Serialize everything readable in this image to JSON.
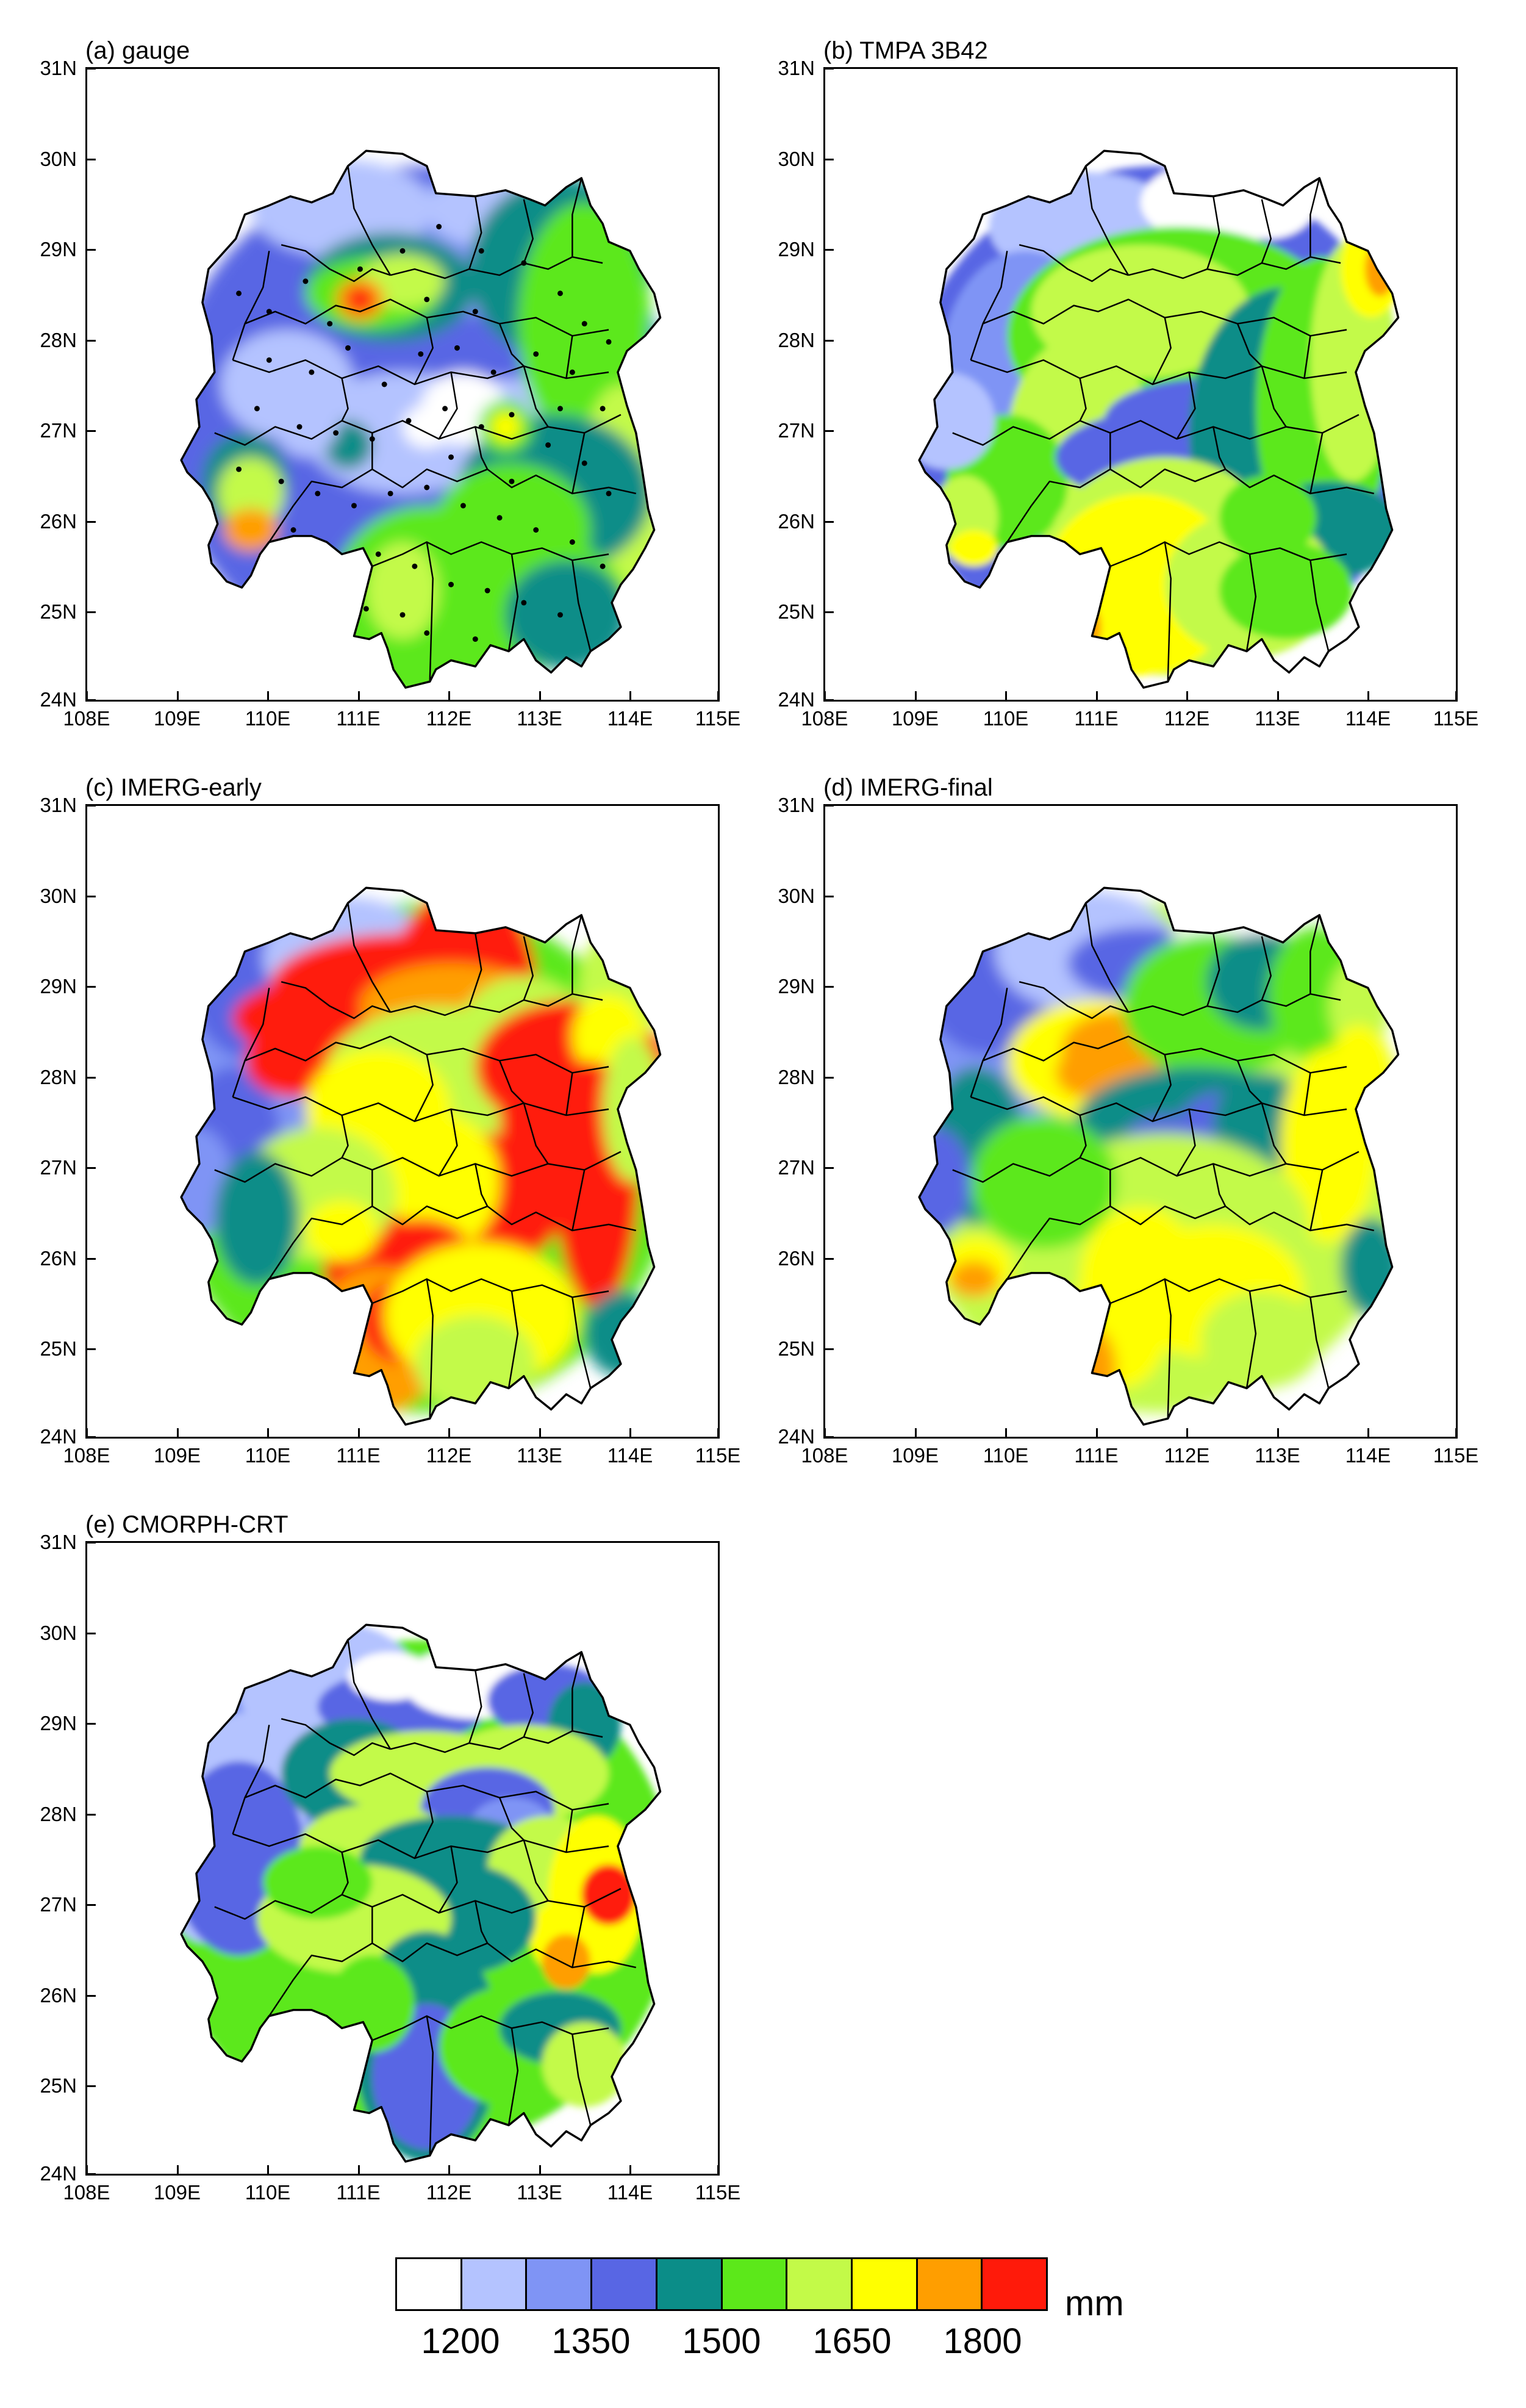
{
  "panels": [
    {
      "title": "(a) gauge",
      "variant": "gauge"
    },
    {
      "title": "(b) TMPA 3B42",
      "variant": "tmpa"
    },
    {
      "title": "(c) IMERG-early",
      "variant": "early"
    },
    {
      "title": "(d) IMERG-final",
      "variant": "final"
    },
    {
      "title": "(e) CMORPH-CRT",
      "variant": "cmorph"
    }
  ],
  "axes": {
    "lat_labels": [
      "31N",
      "30N",
      "29N",
      "28N",
      "27N",
      "26N",
      "25N",
      "24N"
    ],
    "lon_labels": [
      "108E",
      "109E",
      "110E",
      "111E",
      "112E",
      "113E",
      "114E",
      "115E"
    ]
  },
  "colorbar": {
    "colors": [
      "#ffffff",
      "#b4c3ff",
      "#7f94f5",
      "#5866e4",
      "#0b8d88",
      "#5ce81a",
      "#c3fa48",
      "#ffff00",
      "#ff9e00",
      "#ff1a0a"
    ],
    "labels": [
      "1200",
      "1350",
      "1500",
      "1650",
      "1800"
    ],
    "unit": "mm"
  }
}
